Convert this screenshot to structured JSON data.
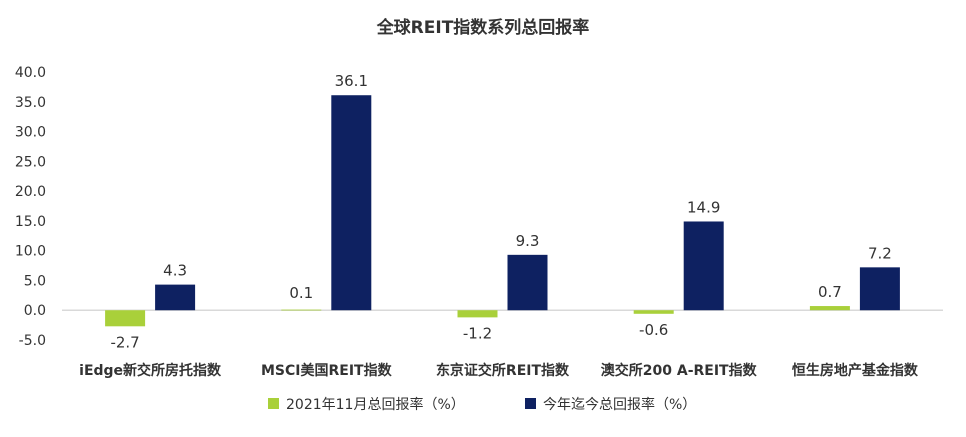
{
  "chart_data": {
    "type": "bar",
    "title": "全球REIT指数系列总回报率",
    "categories": [
      "iEdge新交所房托指数",
      "MSCI美国REIT指数",
      "东京证交所REIT指数",
      "澳交所200 A-REIT指数",
      "恒生房地产基金指数"
    ],
    "series": [
      {
        "name": "2021年11月总回报率（%）",
        "values": [
          -2.7,
          0.1,
          -1.2,
          -0.6,
          0.7
        ],
        "color": "#A9D03A"
      },
      {
        "name": "今年迄今总回报率（%）",
        "values": [
          4.3,
          36.1,
          9.3,
          14.9,
          7.2
        ],
        "color": "#0E2161"
      }
    ],
    "ylim": [
      -5,
      40
    ],
    "yticks": [
      -5,
      0,
      5,
      10,
      15,
      20,
      25,
      30,
      35,
      40
    ],
    "ytick_labels": [
      "-5.0",
      "0.0",
      "5.0",
      "10.0",
      "15.0",
      "20.0",
      "25.0",
      "30.0",
      "35.0",
      "40.0"
    ],
    "data_labels": {
      "series_0": [
        "-2.7",
        "0.1",
        "-1.2",
        "-0.6",
        "0.7"
      ],
      "series_1": [
        "4.3",
        "36.1",
        "9.3",
        "14.9",
        "7.2"
      ]
    },
    "xlabel": "",
    "ylabel": "",
    "grid": false,
    "legend_position": "bottom"
  }
}
